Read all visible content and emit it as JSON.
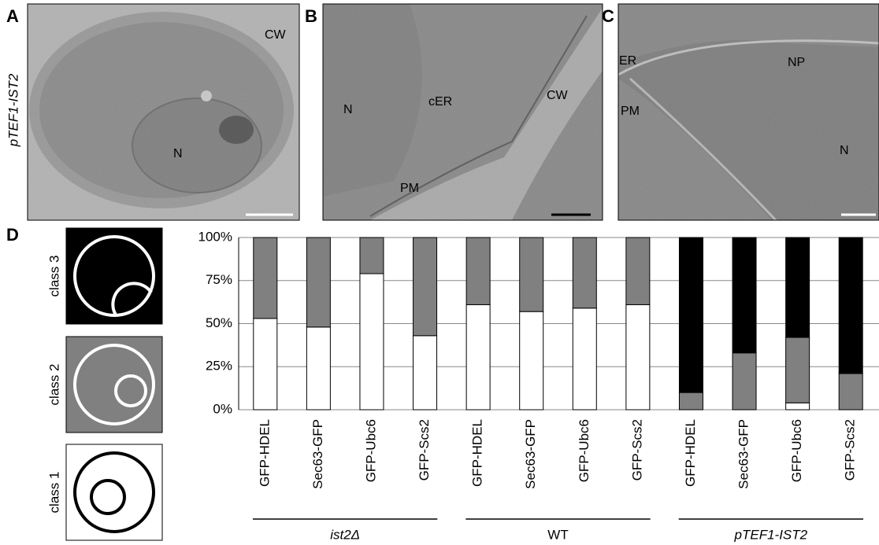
{
  "panels": [
    {
      "letter": "A",
      "side_label": "pTEF1-IST2",
      "labels": [
        "CW",
        "N"
      ]
    },
    {
      "letter": "B",
      "labels": [
        "N",
        "cER",
        "CW",
        "PM"
      ]
    },
    {
      "letter": "C",
      "labels": [
        "ER",
        "NP",
        "PM",
        "N"
      ]
    },
    {
      "letter": "D"
    }
  ],
  "chart_data": {
    "type": "bar",
    "stacked": true,
    "categories": [
      "GFP-HDEL",
      "Sec63-GFP",
      "GFP-Ubc6",
      "GFP-Scs2",
      "GFP-HDEL",
      "Sec63-GFP",
      "GFP-Ubc6",
      "GFP-Scs2",
      "GFP-HDEL",
      "Sec63-GFP",
      "GFP-Ubc6",
      "GFP-Scs2"
    ],
    "groups": [
      "ist2Δ",
      "WT",
      "pTEF1-IST2"
    ],
    "series": [
      {
        "name": "class 1",
        "color": "#ffffff",
        "values": [
          53,
          48,
          79,
          43,
          61,
          57,
          59,
          61,
          0,
          0,
          4,
          0
        ]
      },
      {
        "name": "class 2",
        "color": "#808080",
        "values": [
          47,
          52,
          21,
          57,
          39,
          43,
          41,
          39,
          10,
          33,
          38,
          21
        ]
      },
      {
        "name": "class 3",
        "color": "#000000",
        "values": [
          0,
          0,
          0,
          0,
          0,
          0,
          0,
          0,
          90,
          67,
          58,
          79
        ]
      }
    ],
    "ylim": [
      0,
      100
    ],
    "yticks": [
      {
        "value": 0,
        "label": "0%"
      },
      {
        "value": 25,
        "label": "25%"
      },
      {
        "value": 50,
        "label": "50%"
      },
      {
        "value": 75,
        "label": "75%"
      },
      {
        "value": 100,
        "label": "100%"
      }
    ],
    "grid": true
  }
}
